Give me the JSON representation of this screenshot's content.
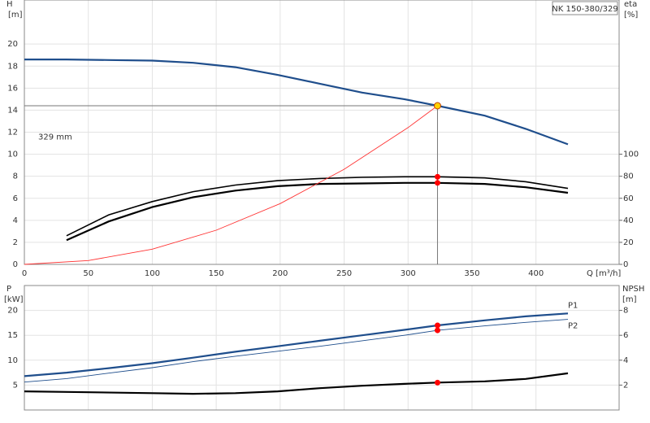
{
  "chart_data": [
    {
      "type": "line",
      "title": "NK 150-380/329",
      "y_label": [
        "H",
        "[m]"
      ],
      "y2_label": [
        "eta",
        "[%]"
      ],
      "x_label": "Q [m³/h]",
      "xlim": [
        0,
        465
      ],
      "xticks": [
        0,
        50,
        100,
        150,
        200,
        250,
        300,
        350,
        400
      ],
      "ylim": [
        0,
        24
      ],
      "yticks": [
        0,
        2,
        4,
        6,
        8,
        10,
        12,
        14,
        16,
        18,
        20
      ],
      "y2lim": [
        0,
        240
      ],
      "y2ticks": [
        0,
        20,
        40,
        60,
        80,
        100
      ],
      "grid": true,
      "series": [
        {
          "name": "329 mm",
          "color": "#1f4e8c",
          "style": "thick",
          "x": [
            0,
            33,
            66,
            100,
            132,
            165,
            198,
            231,
            264,
            297,
            323,
            360,
            392,
            425
          ],
          "values": [
            18.6,
            18.6,
            18.55,
            18.5,
            18.3,
            17.9,
            17.2,
            16.4,
            15.6,
            15.0,
            14.4,
            13.5,
            12.3,
            10.9
          ]
        },
        {
          "color": "#000000",
          "style": "medium",
          "axis": "y2",
          "x": [
            33,
            66,
            100,
            132,
            165,
            198,
            231,
            264,
            297,
            323,
            360,
            392,
            425
          ],
          "values": [
            26,
            45,
            57,
            66,
            72,
            76,
            78,
            79,
            79.5,
            79.5,
            78.5,
            75,
            69
          ]
        },
        {
          "color": "#000000",
          "style": "thick",
          "axis": "y2",
          "x": [
            33,
            66,
            100,
            132,
            165,
            198,
            231,
            264,
            297,
            323,
            360,
            392,
            425
          ],
          "values": [
            22,
            39,
            52,
            61,
            67,
            71,
            73,
            73.5,
            74,
            74,
            73,
            70,
            65
          ]
        },
        {
          "color": "#ff3333",
          "style": "thin",
          "x": [
            0,
            50,
            100,
            150,
            200,
            250,
            300,
            323
          ],
          "values": [
            0,
            0.35,
            1.38,
            3.1,
            5.52,
            8.63,
            12.42,
            14.4
          ]
        }
      ],
      "operating_point": {
        "x": 323,
        "y": 14.4,
        "color": "#ffd200"
      },
      "points": [
        {
          "x": 323,
          "y": 79.5,
          "axis": "y2",
          "color": "#ff0000"
        },
        {
          "x": 323,
          "y": 74,
          "axis": "y2",
          "color": "#ff0000"
        }
      ]
    },
    {
      "type": "line",
      "y_label": [
        "P",
        "[kW]"
      ],
      "y2_label": [
        "NPSH",
        "[m]"
      ],
      "xlim": [
        0,
        465
      ],
      "ylim": [
        0,
        25
      ],
      "yticks": [
        5,
        10,
        15,
        20
      ],
      "y2lim": [
        0,
        10
      ],
      "y2ticks": [
        2,
        4,
        6,
        8
      ],
      "grid": true,
      "series": [
        {
          "name": "P1",
          "color": "#1f4e8c",
          "style": "thick",
          "x": [
            0,
            33,
            66,
            100,
            132,
            165,
            198,
            231,
            264,
            297,
            323,
            360,
            392,
            425
          ],
          "values": [
            6.8,
            7.5,
            8.4,
            9.4,
            10.5,
            11.7,
            12.8,
            13.9,
            15.0,
            16.1,
            17.0,
            18.0,
            18.8,
            19.4
          ]
        },
        {
          "name": "P2",
          "color": "#1f4e8c",
          "style": "thin",
          "x": [
            0,
            33,
            66,
            100,
            132,
            165,
            198,
            231,
            264,
            297,
            323,
            360,
            392,
            425
          ],
          "values": [
            5.6,
            6.3,
            7.4,
            8.5,
            9.7,
            10.8,
            11.8,
            12.8,
            13.9,
            15.0,
            16.0,
            16.9,
            17.6,
            18.2
          ]
        },
        {
          "color": "#000000",
          "style": "thick",
          "axis": "y2",
          "x": [
            0,
            33,
            100,
            132,
            165,
            198,
            231,
            264,
            297,
            323,
            360,
            392,
            425
          ],
          "values": [
            1.5,
            1.45,
            1.35,
            1.3,
            1.35,
            1.5,
            1.75,
            1.95,
            2.1,
            2.2,
            2.3,
            2.5,
            2.95
          ]
        }
      ],
      "points": [
        {
          "x": 323,
          "y": 17.0,
          "color": "#ff0000"
        },
        {
          "x": 323,
          "y": 16.0,
          "color": "#ff0000"
        },
        {
          "x": 323,
          "y": 2.2,
          "axis": "y2",
          "color": "#ff0000"
        }
      ]
    }
  ]
}
